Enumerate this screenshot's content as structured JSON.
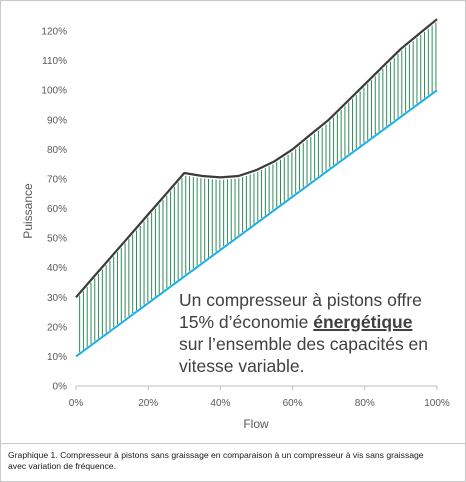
{
  "chart_data": {
    "type": "line",
    "title": "",
    "xlabel": "Flow",
    "ylabel": "Puissance",
    "xlim": [
      0,
      100
    ],
    "ylim": [
      0,
      125
    ],
    "x_ticks": [
      "0%",
      "20%",
      "40%",
      "60%",
      "80%",
      "100%"
    ],
    "y_ticks": [
      "0%",
      "10%",
      "20%",
      "30%",
      "40%",
      "50%",
      "60%",
      "70%",
      "80%",
      "90%",
      "100%",
      "110%",
      "120%"
    ],
    "grid": false,
    "legend": "none",
    "series": [
      {
        "color": "#3b3b3b",
        "x": [
          0,
          5,
          10,
          15,
          20,
          25,
          30,
          35,
          40,
          45,
          50,
          55,
          60,
          65,
          70,
          75,
          80,
          85,
          90,
          95,
          100
        ],
        "y": [
          30,
          37,
          44,
          51,
          58,
          65,
          72,
          71,
          70.5,
          71,
          73,
          76,
          80,
          85,
          90,
          96,
          102,
          108,
          114,
          119,
          124
        ]
      },
      {
        "color": "#1aafe6",
        "x": [
          0,
          100
        ],
        "y": [
          10,
          100
        ]
      }
    ],
    "fill_between_color": "#2e8b57"
  },
  "annotation": {
    "line1": "Un compresseur à pistons offre",
    "line2_prefix": "15% d’économie ",
    "line2_emphasis": "énergétique",
    "line3": "sur l’ensemble des capacités en",
    "line4": "vitesse variable."
  },
  "caption": {
    "line1": "Graphique 1. Compresseur à pistons sans graissage en comparaison à un compresseur à vis sans graissage",
    "line2": "avec variation de fréquence."
  }
}
